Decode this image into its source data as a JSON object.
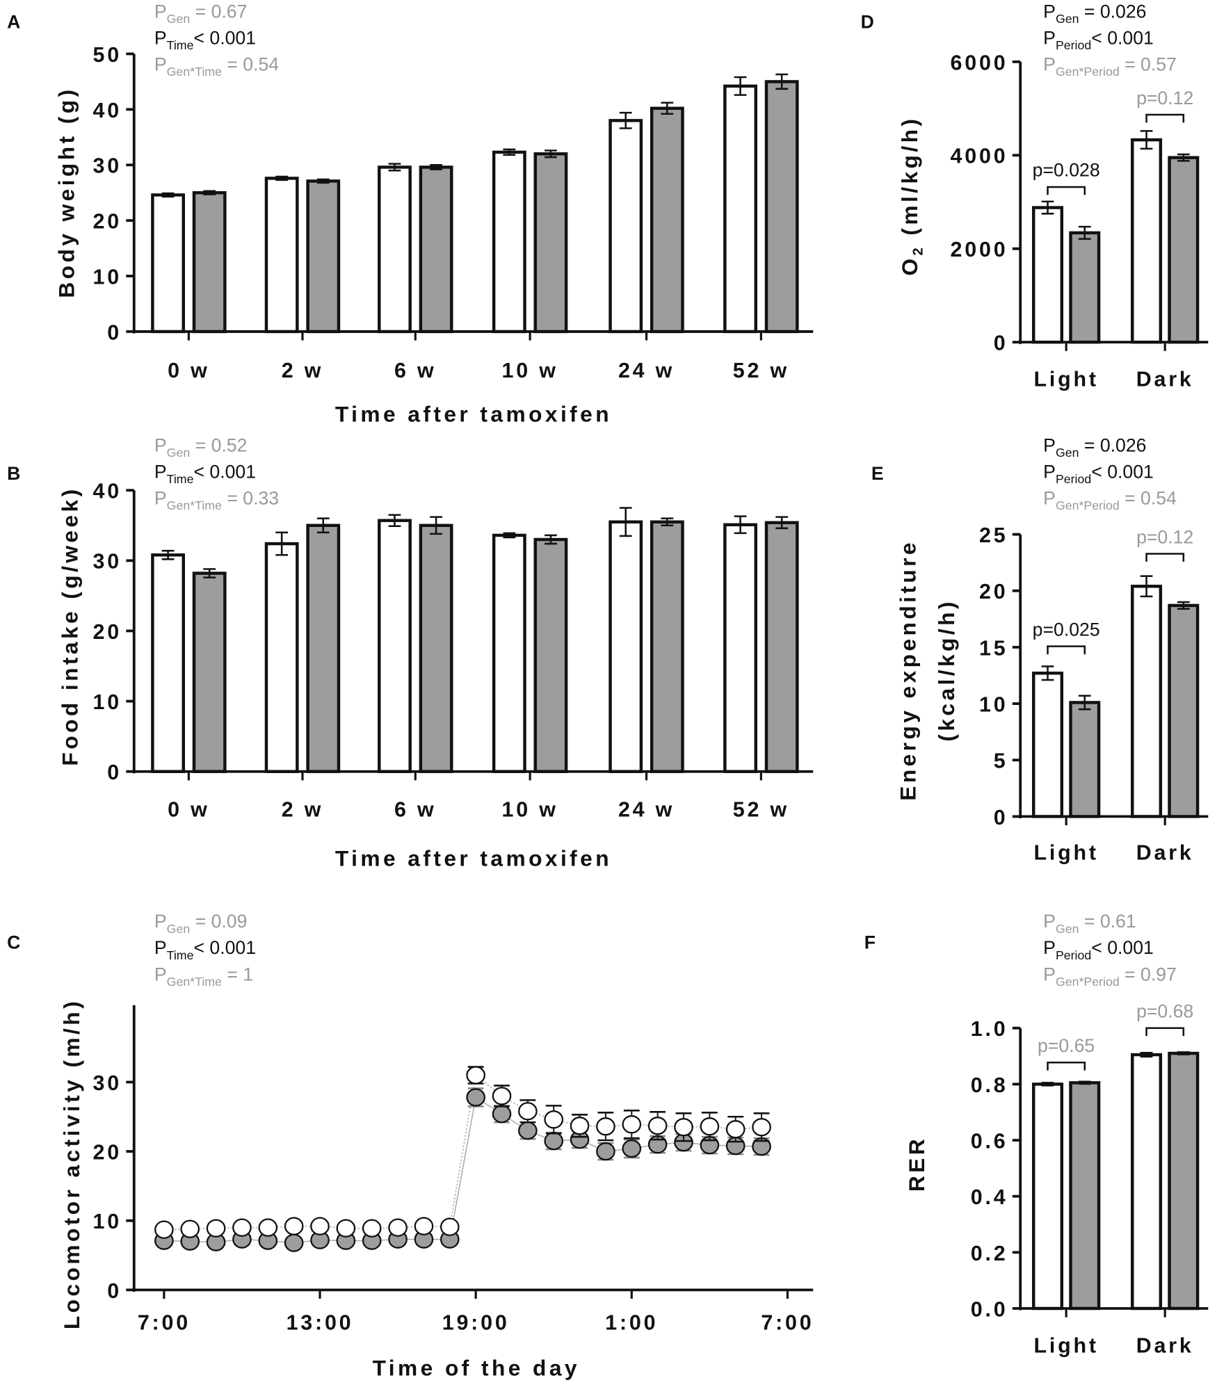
{
  "colors": {
    "open": "#ffffff",
    "filled": "#9d9d9f",
    "significant": "#111111",
    "nonsignificant": "#999999",
    "axis": "#111111"
  },
  "chart_data": [
    {
      "panel": "A",
      "type": "bar",
      "title": "",
      "xlabel": "Time after tamoxifen",
      "ylabel": "Body weight (g)",
      "categories": [
        "0 w",
        "2 w",
        "6 w",
        "10 w",
        "24 w",
        "52 w"
      ],
      "ylim": [
        0,
        50
      ],
      "yticks": [
        "0",
        "10",
        "20",
        "30",
        "40",
        "50"
      ],
      "ytick_values": [
        0,
        10,
        20,
        30,
        40,
        50
      ],
      "series": [
        {
          "fill": "open",
          "values": [
            24.6,
            27.6,
            29.6,
            32.3,
            38.0,
            44.2
          ],
          "errors": [
            0.3,
            0.3,
            0.6,
            0.5,
            1.4,
            1.6
          ]
        },
        {
          "fill": "filled",
          "values": [
            25.0,
            27.1,
            29.6,
            32.0,
            40.2,
            45.0
          ],
          "errors": [
            0.3,
            0.3,
            0.4,
            0.6,
            1.0,
            1.3
          ]
        }
      ],
      "stats": [
        {
          "p": "P",
          "sub": "Gen",
          "rest": " = 0.67",
          "significant": false
        },
        {
          "p": "P",
          "sub": "Time",
          "rest": "< 0.001",
          "significant": true
        },
        {
          "p": "P",
          "sub": "Gen*Time",
          "rest": " = 0.54",
          "significant": false
        }
      ],
      "comparisons": []
    },
    {
      "panel": "B",
      "type": "bar",
      "title": "",
      "xlabel": "Time after tamoxifen",
      "ylabel": "Food intake (g/week)",
      "categories": [
        "0 w",
        "2 w",
        "6 w",
        "10 w",
        "24 w",
        "52 w"
      ],
      "ylim": [
        0,
        40
      ],
      "yticks": [
        "0",
        "10",
        "20",
        "30",
        "40"
      ],
      "ytick_values": [
        0,
        10,
        20,
        30,
        40
      ],
      "series": [
        {
          "fill": "open",
          "values": [
            30.8,
            32.4,
            35.7,
            33.6,
            35.5,
            35.1
          ],
          "errors": [
            0.6,
            1.6,
            0.8,
            0.3,
            2.0,
            1.2
          ]
        },
        {
          "fill": "filled",
          "values": [
            28.2,
            35.0,
            35.0,
            33.0,
            35.5,
            35.4
          ],
          "errors": [
            0.6,
            1.0,
            1.2,
            0.6,
            0.5,
            0.8
          ]
        }
      ],
      "stats": [
        {
          "p": "P",
          "sub": "Gen",
          "rest": " = 0.52",
          "significant": false
        },
        {
          "p": "P",
          "sub": "Time",
          "rest": "< 0.001",
          "significant": true
        },
        {
          "p": "P",
          "sub": "Gen*Time",
          "rest": " = 0.33",
          "significant": false
        }
      ],
      "comparisons": []
    },
    {
      "panel": "C",
      "type": "line",
      "xlabel": "Time of the day",
      "ylabel": "Locomotor activity (m/h)",
      "xticks": [
        "7:00",
        "13:00",
        "19:00",
        "1:00",
        "7:00"
      ],
      "xlim_hours": [
        0,
        24
      ],
      "x_hours_after_7": [
        0,
        1,
        2,
        3,
        4,
        5,
        6,
        7,
        8,
        9,
        10,
        11,
        12,
        13,
        14,
        15,
        16,
        17,
        18,
        19,
        20,
        21,
        22,
        23
      ],
      "ylim": [
        0,
        35
      ],
      "yticks": [
        "0",
        "10",
        "20",
        "30"
      ],
      "ytick_values": [
        0,
        10,
        20,
        30
      ],
      "series": [
        {
          "fill": "open",
          "values": [
            8.7,
            8.8,
            8.9,
            9.0,
            9.0,
            9.2,
            9.2,
            8.9,
            8.9,
            9.0,
            9.2,
            9.1,
            31.0,
            28.0,
            25.8,
            24.6,
            23.7,
            23.6,
            23.9,
            23.7,
            23.5,
            23.6,
            23.2,
            23.5
          ],
          "errors": [
            0.4,
            0.4,
            0.4,
            0.4,
            0.4,
            0.5,
            0.5,
            0.4,
            0.4,
            0.4,
            0.5,
            0.4,
            1.2,
            1.5,
            1.6,
            2.0,
            1.6,
            2.0,
            2.0,
            2.0,
            2.0,
            2.0,
            1.8,
            2.0
          ]
        },
        {
          "fill": "filled",
          "values": [
            7.1,
            7.0,
            6.9,
            7.3,
            7.1,
            6.8,
            7.2,
            7.1,
            7.1,
            7.3,
            7.3,
            7.3,
            27.8,
            25.4,
            23.0,
            21.5,
            21.7,
            20.0,
            20.4,
            21.0,
            21.3,
            20.9,
            20.8,
            20.7
          ],
          "errors": [
            0.5,
            0.5,
            0.5,
            0.5,
            0.5,
            0.5,
            0.5,
            0.5,
            0.5,
            0.5,
            0.5,
            0.5,
            1.3,
            1.2,
            1.2,
            1.2,
            1.2,
            1.2,
            1.3,
            1.2,
            1.2,
            1.2,
            1.2,
            1.2
          ]
        }
      ],
      "stats": [
        {
          "p": "P",
          "sub": "Gen",
          "rest": " = 0.09",
          "significant": false
        },
        {
          "p": "P",
          "sub": "Time",
          "rest": "< 0.001",
          "significant": true
        },
        {
          "p": "P",
          "sub": "Gen*Time",
          "rest": " = 1",
          "significant": false
        }
      ]
    },
    {
      "panel": "D",
      "type": "bar",
      "xlabel": "",
      "ylabel": "O2 (ml/kg/h)",
      "ylabel_main": "O",
      "ylabel_sub": "2",
      "ylabel_rest": " (ml/kg/h)",
      "categories": [
        "Light",
        "Dark"
      ],
      "ylim": [
        0,
        6000
      ],
      "yticks": [
        "0",
        "2000",
        "4000",
        "6000"
      ],
      "ytick_values": [
        0,
        2000,
        4000,
        6000
      ],
      "series": [
        {
          "fill": "open",
          "values": [
            2880,
            4330
          ],
          "errors": [
            130,
            190
          ]
        },
        {
          "fill": "filled",
          "values": [
            2340,
            3950
          ],
          "errors": [
            130,
            70
          ]
        }
      ],
      "stats": [
        {
          "p": "P",
          "sub": "Gen",
          "rest": " = 0.026",
          "significant": true
        },
        {
          "p": "P",
          "sub": "Period",
          "rest": "< 0.001",
          "significant": true
        },
        {
          "p": "P",
          "sub": "Gen*Period",
          "rest": " = 0.57",
          "significant": false
        }
      ],
      "comparisons": [
        {
          "label": "p=0.028",
          "significant": true
        },
        {
          "label": "p=0.12",
          "significant": false
        }
      ]
    },
    {
      "panel": "E",
      "type": "bar",
      "xlabel": "",
      "ylabel": "Energy expenditure",
      "ylabel2": "(kcal/kg/h)",
      "categories": [
        "Light",
        "Dark"
      ],
      "ylim": [
        0,
        25
      ],
      "yticks": [
        "0",
        "5",
        "10",
        "15",
        "20",
        "25"
      ],
      "ytick_values": [
        0,
        5,
        10,
        15,
        20,
        25
      ],
      "series": [
        {
          "fill": "open",
          "values": [
            12.7,
            20.4
          ],
          "errors": [
            0.6,
            0.9
          ]
        },
        {
          "fill": "filled",
          "values": [
            10.1,
            18.7
          ],
          "errors": [
            0.6,
            0.3
          ]
        }
      ],
      "stats": [
        {
          "p": "P",
          "sub": "Gen",
          "rest": " = 0.026",
          "significant": true
        },
        {
          "p": "P",
          "sub": "Period",
          "rest": "< 0.001",
          "significant": true
        },
        {
          "p": "P",
          "sub": "Gen*Period",
          "rest": " = 0.54",
          "significant": false
        }
      ],
      "comparisons": [
        {
          "label": "p=0.025",
          "significant": true
        },
        {
          "label": "p=0.12",
          "significant": false
        }
      ]
    },
    {
      "panel": "F",
      "type": "bar",
      "xlabel": "",
      "ylabel": "RER",
      "categories": [
        "Light",
        "Dark"
      ],
      "ylim": [
        0,
        1.0
      ],
      "yticks": [
        "0.0",
        "0.2",
        "0.4",
        "0.6",
        "0.8",
        "1.0"
      ],
      "ytick_values": [
        0,
        0.2,
        0.4,
        0.6,
        0.8,
        1.0
      ],
      "series": [
        {
          "fill": "open",
          "values": [
            0.8,
            0.905
          ],
          "errors": [
            0.005,
            0.007
          ]
        },
        {
          "fill": "filled",
          "values": [
            0.805,
            0.91
          ],
          "errors": [
            0.004,
            0.004
          ]
        }
      ],
      "stats": [
        {
          "p": "P",
          "sub": "Gen",
          "rest": " = 0.61",
          "significant": false
        },
        {
          "p": "P",
          "sub": "Period",
          "rest": "< 0.001",
          "significant": true
        },
        {
          "p": "P",
          "sub": "Gen*Period",
          "rest": " = 0.97",
          "significant": false
        }
      ],
      "comparisons": [
        {
          "label": "p=0.65",
          "significant": false
        },
        {
          "label": "p=0.68",
          "significant": false
        }
      ]
    }
  ]
}
